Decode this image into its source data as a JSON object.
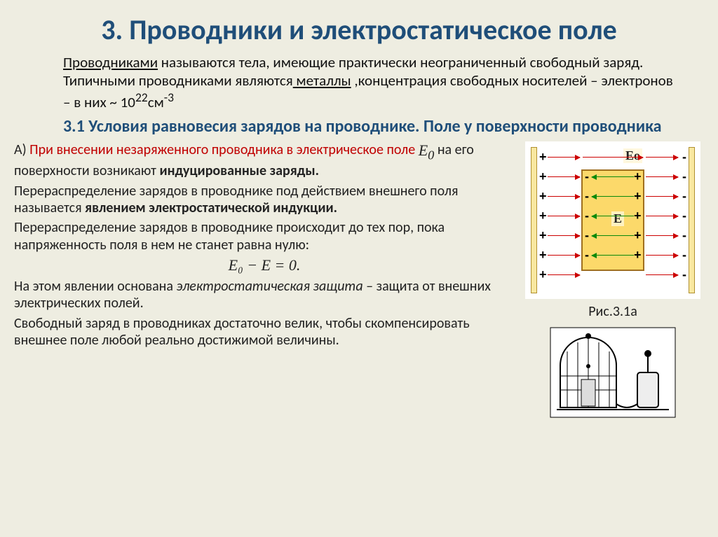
{
  "title": "3. Проводники и электростатическое поле",
  "intro": {
    "line1_a": "Проводниками",
    "line1_b": " называются тела, имеющие практически неограниченный свободный заряд. Типичными проводниками являются",
    "line1_c": " металлы",
    "line2_a": " ,концентрация свободных носителей – электронов – в них  ~ 10",
    "exp": "22",
    "unit": "см",
    "unit_exp": "-3"
  },
  "subheading": "3.1 Условия равновесия зарядов на проводнике. Поле у поверхности проводника",
  "para_a": {
    "a1": "А) ",
    "a2": "При внесении незаряженного проводника в электрическое поле ",
    "e0": "E",
    "e0_sub": "0",
    "a3": "  на его поверхности возникают ",
    "a4": "индуцированные заряды."
  },
  "para_b": {
    "b1": " Перераспределение зарядов в проводнике под действием внешнего поля называется ",
    "b2": "явлением электростатической индукции."
  },
  "para_c": "Перераспределение зарядов в проводнике происходит до тех пор, пока напряженность поля в нем не станет равна нулю:",
  "equation": "E₀ − E = 0.",
  "para_d": {
    "d1": "На этом явлении основана ",
    "d2": "электростатическая защита",
    "d3": " – защита от внешних электрических полей."
  },
  "para_e": " Свободный заряд в проводниках достаточно велик, чтобы скомпенсировать внешнее поле любой реально достижимой величины.",
  "fig_caption": "Рис.3.1а",
  "diagram": {
    "label_E0": "Eо",
    "label_E": "E",
    "row_tops": [
      22,
      50,
      78,
      106,
      134,
      162,
      190
    ],
    "plate_left_sign": "+",
    "plate_right_sign": "-",
    "cond_left_sign": "-",
    "cond_right_sign": "+",
    "colors": {
      "background": "#ffffff",
      "plate_fill": "#f9e8a0",
      "plate_border": "#b09030",
      "cond_fill": "#fcd96a",
      "cond_border": "#a07020",
      "arrow_red": "#c00000",
      "arrow_green": "#0a8a0a"
    }
  },
  "palette": {
    "slide_bg": "#eeede1",
    "heading_color": "#1f4e79",
    "body_color": "#111111",
    "accent_red": "#c00000"
  },
  "fonts": {
    "body": "Calibri",
    "title_size_pt": 30,
    "sub_size_pt": 18,
    "body_size_pt": 15
  }
}
